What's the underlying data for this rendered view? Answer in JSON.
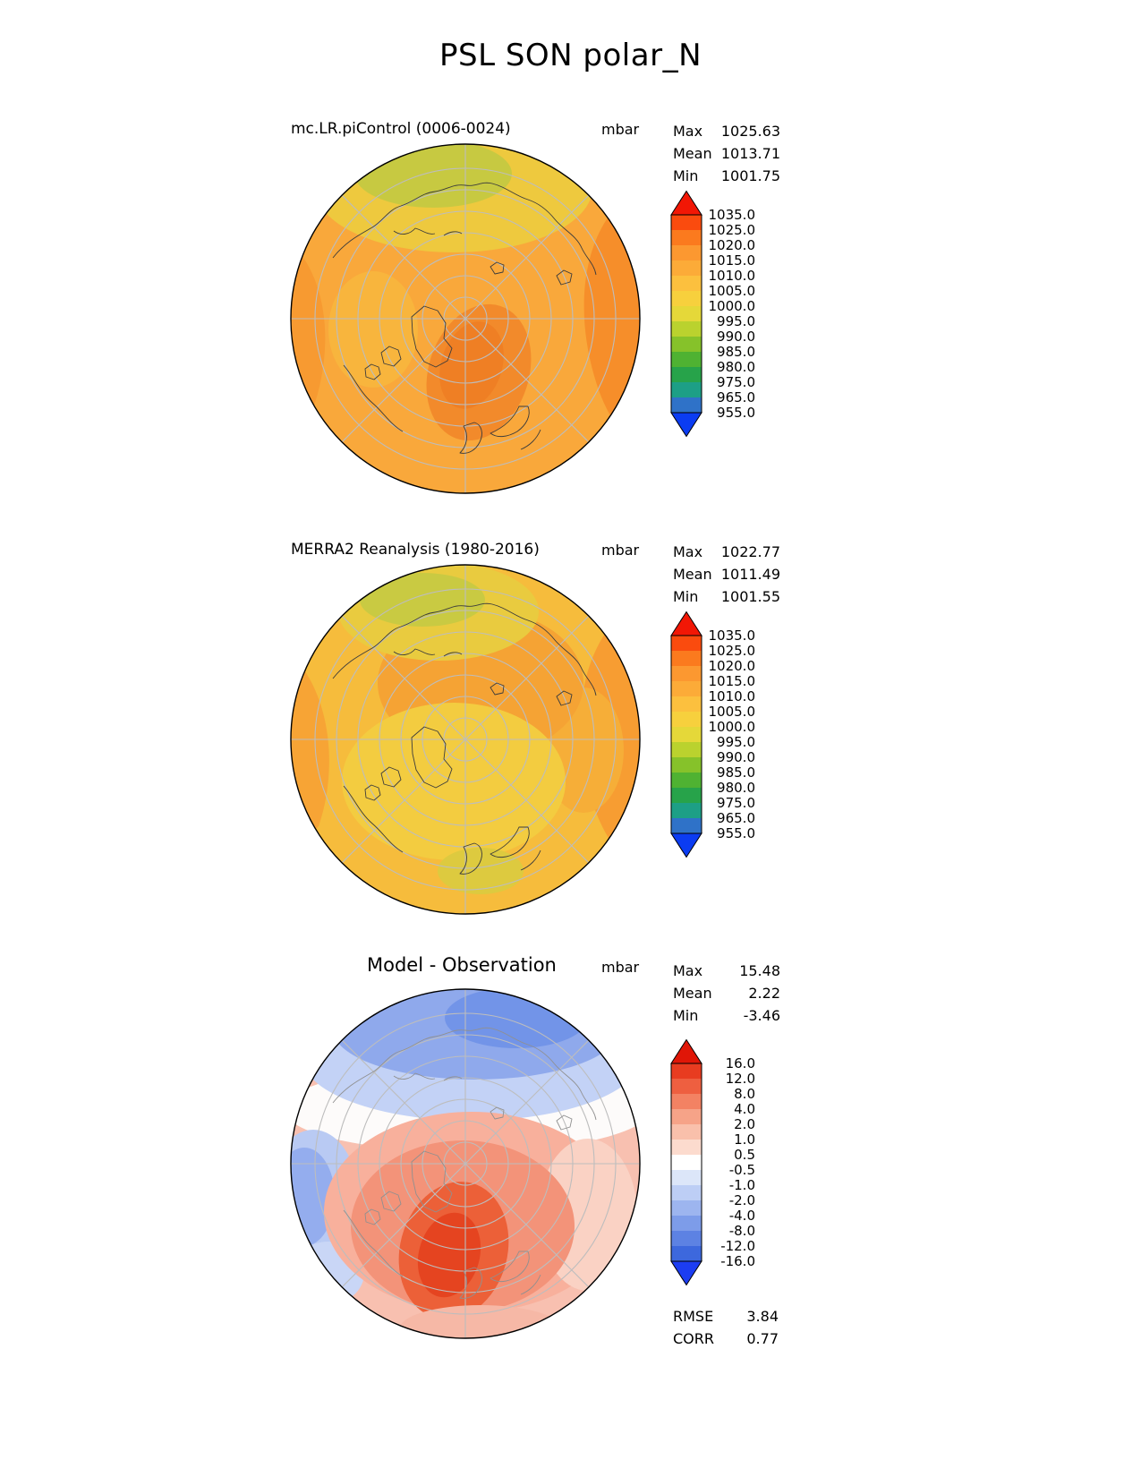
{
  "title": "PSL SON polar_N",
  "panels": [
    {
      "id": "model",
      "subtitle": "mc.LR.piControl (0006-0024)",
      "units": "mbar",
      "stats": [
        {
          "label": "Max",
          "value": "1025.63"
        },
        {
          "label": "Mean",
          "value": "1013.71"
        },
        {
          "label": "Min",
          "value": "1001.75"
        }
      ],
      "colorbar": {
        "labels": [
          "1035.0",
          "1025.0",
          "1020.0",
          "1015.0",
          "1010.0",
          "1005.0",
          "1000.0",
          "995.0",
          "990.0",
          "985.0",
          "980.0",
          "975.0",
          "965.0",
          "955.0"
        ],
        "segment_colors": [
          "#fa4b0e",
          "#fb7a1e",
          "#fc9830",
          "#fcab38",
          "#fcc03e",
          "#f7d03d",
          "#e5d839",
          "#bad22e",
          "#86c22a",
          "#4fb232",
          "#27a34a",
          "#1d9f86",
          "#2f72c8"
        ],
        "arrow_top": "#f21705",
        "arrow_bottom": "#0b3cf2"
      }
    },
    {
      "id": "observation",
      "subtitle": "MERRA2 Reanalysis (1980-2016)",
      "units": "mbar",
      "stats": [
        {
          "label": "Max",
          "value": "1022.77"
        },
        {
          "label": "Mean",
          "value": "1011.49"
        },
        {
          "label": "Min",
          "value": "1001.55"
        }
      ],
      "colorbar": {
        "labels": [
          "1035.0",
          "1025.0",
          "1020.0",
          "1015.0",
          "1010.0",
          "1005.0",
          "1000.0",
          "995.0",
          "990.0",
          "985.0",
          "980.0",
          "975.0",
          "965.0",
          "955.0"
        ],
        "segment_colors": [
          "#fa4b0e",
          "#fb7a1e",
          "#fc9830",
          "#fcab38",
          "#fcc03e",
          "#f7d03d",
          "#e5d839",
          "#bad22e",
          "#86c22a",
          "#4fb232",
          "#27a34a",
          "#1d9f86",
          "#2f72c8"
        ],
        "arrow_top": "#f21705",
        "arrow_bottom": "#0b3cf2"
      }
    },
    {
      "id": "difference",
      "subtitle": "Model - Observation",
      "units": "mbar",
      "stats": [
        {
          "label": "Max",
          "value": "15.48"
        },
        {
          "label": "Mean",
          "value": "2.22"
        },
        {
          "label": "Min",
          "value": "-3.46"
        }
      ],
      "colorbar": {
        "labels": [
          "16.0",
          "12.0",
          "8.0",
          "4.0",
          "2.0",
          "1.0",
          "0.5",
          "-0.5",
          "-1.0",
          "-2.0",
          "-4.0",
          "-8.0",
          "-12.0",
          "-16.0"
        ],
        "segment_colors": [
          "#e83c20",
          "#ee5f40",
          "#f38263",
          "#f6a388",
          "#f9c0ab",
          "#fcdbce",
          "#ffffff",
          "#dce6f9",
          "#bdcef5",
          "#9db5ef",
          "#7d9ce9",
          "#5d82e3",
          "#3d68dd"
        ],
        "arrow_top": "#e01607",
        "arrow_bottom": "#1c3df2"
      },
      "metrics": [
        {
          "label": "RMSE",
          "value": "3.84"
        },
        {
          "label": "CORR",
          "value": "0.77"
        }
      ]
    }
  ],
  "chart_data": [
    {
      "type": "heatmap",
      "subtype": "polar-stereographic-contour-map",
      "variable": "PSL",
      "season": "SON",
      "region": "polar_N",
      "title": "mc.LR.piControl (0006-0024)",
      "units": "mbar",
      "levels": [
        955,
        965,
        975,
        980,
        985,
        990,
        995,
        1000,
        1005,
        1010,
        1015,
        1020,
        1025,
        1035
      ],
      "stats": {
        "max": 1025.63,
        "mean": 1013.71,
        "min": 1001.75
      },
      "legend_position": "right"
    },
    {
      "type": "heatmap",
      "subtype": "polar-stereographic-contour-map",
      "variable": "PSL",
      "season": "SON",
      "region": "polar_N",
      "title": "MERRA2 Reanalysis (1980-2016)",
      "units": "mbar",
      "levels": [
        955,
        965,
        975,
        980,
        985,
        990,
        995,
        1000,
        1005,
        1010,
        1015,
        1020,
        1025,
        1035
      ],
      "stats": {
        "max": 1022.77,
        "mean": 1011.49,
        "min": 1001.55
      },
      "legend_position": "right"
    },
    {
      "type": "heatmap",
      "subtype": "polar-stereographic-contour-map",
      "variable": "PSL",
      "season": "SON",
      "region": "polar_N",
      "title": "Model - Observation",
      "units": "mbar",
      "levels": [
        -16,
        -12,
        -8,
        -4,
        -2,
        -1,
        -0.5,
        0.5,
        1,
        2,
        4,
        8,
        12,
        16
      ],
      "stats": {
        "max": 15.48,
        "mean": 2.22,
        "min": -3.46
      },
      "metrics": {
        "rmse": 3.84,
        "corr": 0.77
      },
      "legend_position": "right"
    }
  ]
}
